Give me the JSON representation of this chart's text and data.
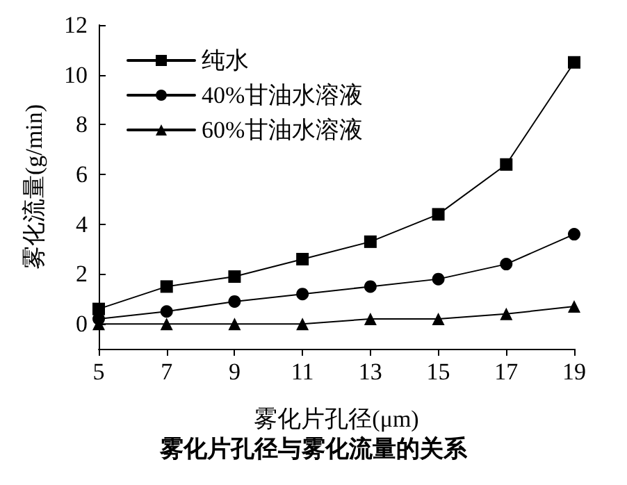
{
  "chart_data": {
    "type": "line",
    "title": "雾化片孔径与雾化流量的关系",
    "xlabel": "雾化片孔径(μm)",
    "ylabel": "雾化流量(g/min)",
    "x": [
      5,
      7,
      9,
      11,
      13,
      15,
      17,
      19
    ],
    "xlim": [
      5,
      19
    ],
    "xticks": [
      5,
      7,
      9,
      11,
      13,
      15,
      17,
      19
    ],
    "ylim": [
      -1,
      12
    ],
    "yticks": [
      0,
      2,
      4,
      6,
      8,
      10,
      12
    ],
    "grid": false,
    "legend": "top left",
    "line_style": "solid",
    "series": [
      {
        "name": "纯水",
        "color": "#000000",
        "marker": "square",
        "values": [
          0.6,
          1.5,
          1.9,
          2.6,
          3.3,
          4.4,
          6.4,
          10.5
        ]
      },
      {
        "name": "40%甘油水溶液",
        "color": "#000000",
        "marker": "circle",
        "values": [
          0.2,
          0.5,
          0.9,
          1.2,
          1.5,
          1.8,
          2.4,
          3.6
        ]
      },
      {
        "name": "60%甘油水溶液",
        "color": "#000000",
        "marker": "triangle",
        "values": [
          0,
          0,
          0,
          0,
          0.2,
          0.2,
          0.4,
          0.7
        ]
      }
    ]
  }
}
